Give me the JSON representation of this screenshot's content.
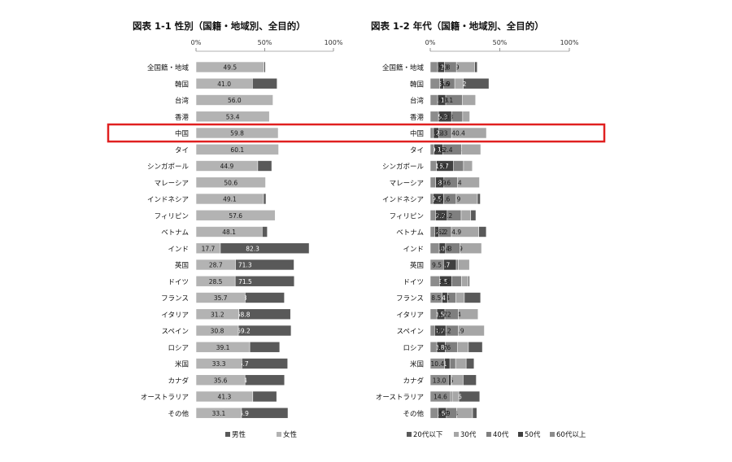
{
  "highlight": {
    "category": "中国",
    "color": "#e02020"
  },
  "colors": {
    "gender": [
      "#595959",
      "#b3b3b3"
    ],
    "age": [
      "#595959",
      "#a6a6a6",
      "#7f7f7f",
      "#404040",
      "#8c8c8c"
    ]
  },
  "chart_data": [
    {
      "type": "bar",
      "stacked": true,
      "orientation": "horizontal",
      "title": "図表 1-1  性別（国籍・地域別、全目的）",
      "xlim": [
        0,
        100
      ],
      "x_ticks": [
        "0%",
        "50%",
        "100%"
      ],
      "grid": false,
      "legend_position": "bottom",
      "categories": [
        "全国籍・地域",
        "韓国",
        "台湾",
        "香港",
        "中国",
        "タイ",
        "シンガポール",
        "マレーシア",
        "インドネシア",
        "フィリピン",
        "ベトナム",
        "インド",
        "英国",
        "ドイツ",
        "フランス",
        "イタリア",
        "スペイン",
        "ロシア",
        "米国",
        "カナダ",
        "オーストラリア",
        "その他"
      ],
      "series": [
        {
          "name": "男性",
          "values": [
            50.5,
            59.0,
            44.0,
            46.6,
            40.2,
            39.9,
            55.1,
            49.4,
            50.9,
            42.4,
            51.9,
            82.3,
            71.3,
            71.5,
            64.3,
            68.8,
            69.2,
            60.9,
            66.7,
            64.4,
            58.7,
            66.9
          ]
        },
        {
          "name": "女性",
          "values": [
            49.5,
            41.0,
            56.0,
            53.4,
            59.8,
            60.1,
            44.9,
            50.6,
            49.1,
            57.6,
            48.1,
            17.7,
            28.7,
            28.5,
            35.7,
            31.2,
            30.8,
            39.1,
            33.3,
            35.6,
            41.3,
            33.1
          ]
        }
      ]
    },
    {
      "type": "bar",
      "stacked": true,
      "orientation": "horizontal",
      "title": "図表 1-2  年代（国籍・地域別、全目的）",
      "xlim": [
        0,
        100
      ],
      "x_ticks": [
        "0%",
        "50%",
        "100%"
      ],
      "grid": false,
      "legend_position": "bottom",
      "categories": [
        "全国籍・地域",
        "韓国",
        "台湾",
        "香港",
        "中国",
        "タイ",
        "シンガポール",
        "マレーシア",
        "インドネシア",
        "フィリピン",
        "ベトナム",
        "インド",
        "英国",
        "ドイツ",
        "フランス",
        "イタリア",
        "スペイン",
        "ロシア",
        "米国",
        "カナダ",
        "オーストラリア",
        "その他"
      ],
      "series": [
        {
          "name": "20代以下",
          "values": [
            33.8,
            42.2,
            27.9,
            27.1,
            35.8,
            29.6,
            24.6,
            31.4,
            36.0,
            32.8,
            40.3,
            24.4,
            23.4,
            28.3,
            36.2,
            30.3,
            26.6,
            37.5,
            31.5,
            33.1,
            35.6,
            33.5
          ]
        },
        {
          "name": "30代",
          "values": [
            31.9,
            23.7,
            32.6,
            28.4,
            40.4,
            36.3,
            30.3,
            35.4,
            33.9,
            29.1,
            34.9,
            36.9,
            28.2,
            27.3,
            24.5,
            34.4,
            38.9,
            27.4,
            25.8,
            23.6,
            20.5,
            30.4
          ]
        },
        {
          "name": "40代",
          "values": [
            18.8,
            17.6,
            23.1,
            23.3,
            15.3,
            22.4,
            23.9,
            19.6,
            18.6,
            22.2,
            15.2,
            21.3,
            20.1,
            22.4,
            18.4,
            20.2,
            20.2,
            19.6,
            18.2,
            15.3,
            15.8,
            18.9
          ]
        },
        {
          "name": "50代",
          "values": [
            10.2,
            9.6,
            11.1,
            15.3,
            6.2,
            9.1,
            16.7,
            9.8,
            9.5,
            12.2,
            6.2,
            11.0,
            18.7,
            15.5,
            12.4,
            10.5,
            11.2,
            10.8,
            14.1,
            15.0,
            13.6,
            11.6
          ]
        },
        {
          "name": "60代以上",
          "values": [
            5.3,
            6.9,
            5.3,
            5.9,
            2.3,
            2.6,
            4.4,
            3.9,
            2.0,
            3.8,
            3.2,
            6.4,
            9.5,
            6.6,
            8.5,
            4.7,
            3.1,
            4.7,
            10.4,
            13.0,
            14.6,
            5.7
          ]
        }
      ]
    }
  ]
}
